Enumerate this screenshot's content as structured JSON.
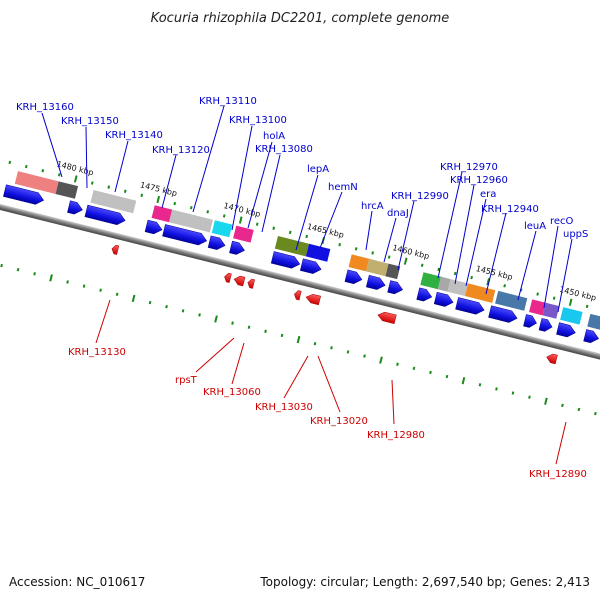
{
  "title": "Kocuria rhizophila DC2201, complete genome",
  "accession": "Accession: NC_010617",
  "topology": "Topology: circular; Length: 2,697,540 bp; Genes: 2,413",
  "kbp_labels": [
    "1480 kbp",
    "1475 kbp",
    "1470 kbp",
    "1465 kbp",
    "1460 kbp",
    "1455 kbp",
    "1450 kbp"
  ],
  "forward_genes": [
    "KRH_13160",
    "KRH_13150",
    "KRH_13140",
    "KRH_13120",
    "KRH_13110",
    "KRH_13100",
    "holA",
    "KRH_13080",
    "lepA",
    "hemN",
    "hrcA",
    "dnaJ",
    "KRH_12990",
    "KRH_12970",
    "KRH_12960",
    "era",
    "KRH_12940",
    "leuA",
    "recO",
    "uppS"
  ],
  "reverse_genes": [
    "KRH_13130",
    "rpsT",
    "KRH_13060",
    "KRH_13030",
    "KRH_13020",
    "KRH_12980",
    "KRH_12890"
  ],
  "colors": {
    "forward": "#0000cc",
    "reverse": "#cc0000",
    "arrow_fwd": "#1010e8",
    "arrow_rev": "#ee1111",
    "backbone": "#888888",
    "tick": "#1a8a1a"
  }
}
